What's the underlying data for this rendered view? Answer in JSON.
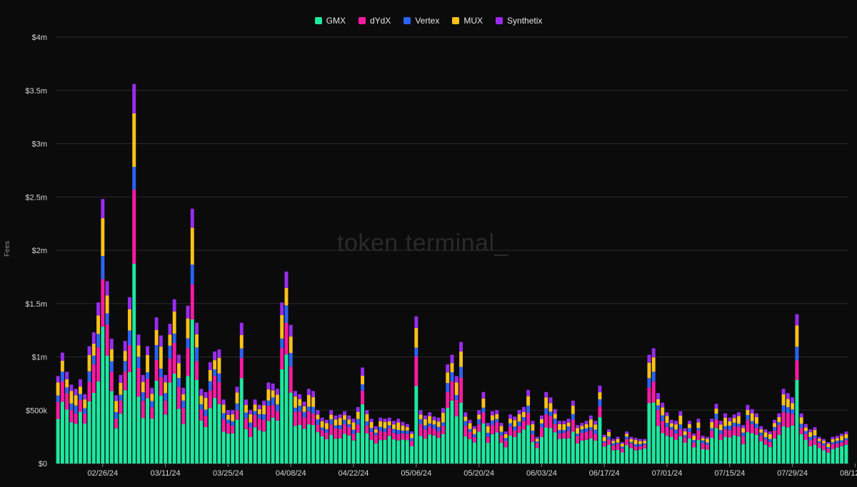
{
  "legend": [
    {
      "name": "GMX",
      "color": "#1ee8a0"
    },
    {
      "name": "dYdX",
      "color": "#ff1aa3"
    },
    {
      "name": "Vertex",
      "color": "#2a64f5"
    },
    {
      "name": "MUX",
      "color": "#ffc21a"
    },
    {
      "name": "Synthetix",
      "color": "#9a2cf0"
    }
  ],
  "watermark": "token terminal_",
  "chart_data": {
    "type": "bar",
    "stacked": true,
    "ylabel": "Fees",
    "ylim": [
      0,
      4000000
    ],
    "yticks": [
      {
        "value": 0,
        "label": "$0"
      },
      {
        "value": 500000,
        "label": "$500k"
      },
      {
        "value": 1000000,
        "label": "$1m"
      },
      {
        "value": 1500000,
        "label": "$1.5m"
      },
      {
        "value": 2000000,
        "label": "$2m"
      },
      {
        "value": 2500000,
        "label": "$2.5m"
      },
      {
        "value": 3000000,
        "label": "$3m"
      },
      {
        "value": 3500000,
        "label": "$3.5m"
      },
      {
        "value": 4000000,
        "label": "$4m"
      }
    ],
    "xticks": [
      "02/26/24",
      "03/11/24",
      "03/25/24",
      "04/08/24",
      "04/22/24",
      "05/06/24",
      "05/20/24",
      "06/03/24",
      "06/17/24",
      "07/01/24",
      "07/15/24",
      "07/29/24",
      "08/12/24"
    ],
    "xtick_days": [
      10,
      24,
      38,
      52,
      66,
      80,
      94,
      108,
      122,
      136,
      150,
      164,
      178
    ],
    "first_date": "02/16/24",
    "totals": [
      820000,
      1040000,
      860000,
      740000,
      700000,
      790000,
      650000,
      1100000,
      1230000,
      1510000,
      2480000,
      1710000,
      1170000,
      640000,
      830000,
      1150000,
      1560000,
      3560000,
      1210000,
      830000,
      1100000,
      710000,
      1370000,
      1200000,
      830000,
      1310000,
      1540000,
      1020000,
      710000,
      1480000,
      2390000,
      1320000,
      700000,
      670000,
      950000,
      1050000,
      1070000,
      600000,
      500000,
      500000,
      720000,
      1320000,
      600000,
      500000,
      600000,
      550000,
      590000,
      760000,
      750000,
      700000,
      1510000,
      1800000,
      1300000,
      680000,
      650000,
      580000,
      700000,
      680000,
      500000,
      430000,
      410000,
      500000,
      450000,
      460000,
      490000,
      450000,
      420000,
      530000,
      900000,
      500000,
      420000,
      350000,
      430000,
      420000,
      430000,
      400000,
      420000,
      390000,
      370000,
      300000,
      1380000,
      500000,
      450000,
      480000,
      440000,
      430000,
      520000,
      930000,
      1020000,
      820000,
      1140000,
      480000,
      410000,
      350000,
      500000,
      670000,
      380000,
      490000,
      500000,
      380000,
      300000,
      460000,
      440000,
      500000,
      530000,
      690000,
      400000,
      250000,
      450000,
      670000,
      620000,
      510000,
      400000,
      400000,
      420000,
      590000,
      360000,
      380000,
      400000,
      450000,
      400000,
      730000,
      270000,
      320000,
      230000,
      250000,
      200000,
      300000,
      250000,
      240000,
      230000,
      230000,
      1020000,
      1080000,
      660000,
      570000,
      480000,
      410000,
      400000,
      490000,
      330000,
      400000,
      280000,
      420000,
      260000,
      250000,
      420000,
      560000,
      400000,
      470000,
      430000,
      460000,
      480000,
      360000,
      550000,
      510000,
      470000,
      350000,
      320000,
      300000,
      410000,
      470000,
      700000,
      660000,
      620000,
      1400000,
      470000,
      370000,
      320000,
      340000,
      250000,
      230000,
      200000,
      250000,
      260000,
      280000,
      300000
    ],
    "series": [
      {
        "name": "GMX",
        "share": 0.55
      },
      {
        "name": "dYdX",
        "share": 0.17
      },
      {
        "name": "Vertex",
        "share": 0.08
      },
      {
        "name": "MUX",
        "share": 0.12
      },
      {
        "name": "Synthetix",
        "share": 0.08
      }
    ]
  }
}
